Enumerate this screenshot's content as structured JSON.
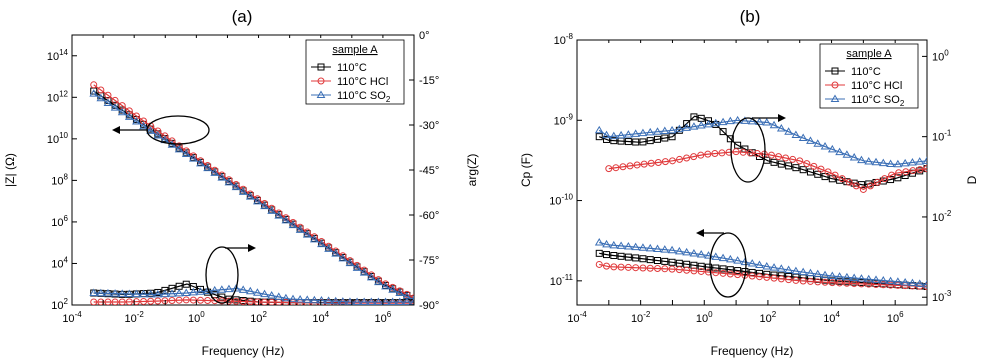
{
  "panels": [
    {
      "title": "(a)",
      "xlabel": "Frequency (Hz)",
      "ylabel_left": "|Z| (Ω)",
      "ylabel_right": "arg(Z)",
      "x_ticks": [
        "10-4",
        "10-2",
        "100",
        "102",
        "104",
        "106"
      ],
      "y_left_ticks": [
        "102",
        "104",
        "106",
        "108",
        "1010",
        "1012",
        "1014"
      ],
      "y_right_ticks": [
        "0°",
        "-15°",
        "-30°",
        "-45°",
        "-60°",
        "-75°",
        "-90°"
      ],
      "legend": {
        "title": "sample A",
        "entries": [
          {
            "label": "110°C",
            "color": "#000000",
            "marker": "square"
          },
          {
            "label": "110°C HCl",
            "color": "#e0393b",
            "marker": "circle"
          },
          {
            "label": "110°C SO",
            "sub": "2",
            "color": "#3b6fb6",
            "marker": "triangle"
          }
        ]
      }
    },
    {
      "title": "(b)",
      "xlabel": "Frequency (Hz)",
      "ylabel_left": "Cp (F)",
      "ylabel_right": "D",
      "x_ticks": [
        "10-4",
        "10-2",
        "100",
        "102",
        "104",
        "106"
      ],
      "y_left_ticks": [
        "10-11",
        "10-10",
        "10-9",
        "10-8"
      ],
      "y_right_ticks": [
        "10-3",
        "10-2",
        "10-1",
        "100"
      ],
      "legend": {
        "title": "sample A",
        "entries": [
          {
            "label": "110°C",
            "color": "#000000",
            "marker": "square"
          },
          {
            "label": "110°C HCl",
            "color": "#e0393b",
            "marker": "circle"
          },
          {
            "label": "110°C SO",
            "sub": "2",
            "color": "#3b6fb6",
            "marker": "triangle"
          }
        ]
      }
    }
  ],
  "colors": {
    "s110": "#000000",
    "hcl": "#e0393b",
    "so2": "#3b6fb6"
  },
  "chart_data": [
    {
      "type": "scatter",
      "title": "(a)",
      "xlabel": "Frequency (Hz)",
      "ylabel": "|Z| (Ω)",
      "y2label": "arg(Z)",
      "xscale": "log",
      "xlim": [
        0.0001,
        10000000
      ],
      "yscale": "log",
      "ylim": [
        100,
        1000000000000000
      ],
      "y2lim": [
        -90,
        0
      ],
      "legend_position": "top-right",
      "series": [
        {
          "name": "110°C",
          "axis": "left",
          "marker": "square",
          "x": [
            0.0005,
            0.01,
            1,
            100,
            10000,
            1000000,
            10000000
          ],
          "y": [
            2000000000000,
            100000000000,
            1000000000,
            10000000,
            100000,
            1000,
            200
          ]
        },
        {
          "name": "110°C HCl",
          "axis": "left",
          "marker": "circle",
          "x": [
            0.0005,
            0.01,
            1,
            100,
            10000,
            1000000,
            10000000
          ],
          "y": [
            4000000000000,
            150000000000,
            1200000000,
            12000000,
            120000,
            1200,
            220
          ]
        },
        {
          "name": "110°C SO2",
          "axis": "left",
          "marker": "triangle",
          "x": [
            0.0005,
            0.01,
            1,
            100,
            10000,
            1000000,
            10000000
          ],
          "y": [
            1500000000000,
            80000000000,
            900000000,
            9000000,
            90000,
            900,
            180
          ]
        },
        {
          "name": "110°C",
          "axis": "right",
          "marker": "square",
          "x": [
            0.0005,
            0.005,
            0.05,
            0.5,
            2,
            10,
            100,
            1000,
            100000,
            10000000
          ],
          "y": [
            -86,
            -86.5,
            -86,
            -83,
            -85.5,
            -88,
            -89,
            -89.2,
            -89.2,
            -89.2
          ]
        },
        {
          "name": "110°C HCl",
          "axis": "right",
          "marker": "circle",
          "x": [
            0.0005,
            0.005,
            0.05,
            0.5,
            5,
            100,
            10000,
            10000000
          ],
          "y": [
            -89,
            -89,
            -88.7,
            -88.3,
            -88.6,
            -89,
            -89.3,
            -89.4
          ]
        },
        {
          "name": "110°C SO2",
          "axis": "right",
          "marker": "triangle",
          "x": [
            0.0005,
            0.005,
            0.05,
            0.5,
            5,
            20,
            100,
            1000,
            100000,
            10000000
          ],
          "y": [
            -86,
            -86.3,
            -86.5,
            -86,
            -85,
            -84.5,
            -86,
            -88,
            -89,
            -89
          ]
        }
      ],
      "annotations": [
        {
          "text": "ellipse with arrow to left axis",
          "near": [
            3,
            10000000000
          ]
        },
        {
          "text": "ellipse with arrow to right axis",
          "near": [
            3,
            -87
          ]
        }
      ]
    },
    {
      "type": "scatter",
      "title": "(b)",
      "xlabel": "Frequency (Hz)",
      "ylabel": "Cp (F)",
      "y2label": "D",
      "xscale": "log",
      "xlim": [
        0.0001,
        10000000
      ],
      "yscale": "log",
      "ylim": [
        5e-12,
        1e-08
      ],
      "y2scale": "log",
      "y2lim": [
        0.0008,
        1.6
      ],
      "legend_position": "top-right",
      "series": [
        {
          "name": "110°C",
          "axis": "left",
          "marker": "square",
          "x": [
            0.0005,
            0.001,
            0.01,
            0.1,
            1,
            10,
            100,
            1000,
            10000,
            1000000,
            10000000
          ],
          "y": [
            2.2e-11,
            2.1e-11,
            1.9e-11,
            1.7e-11,
            1.5e-11,
            1.35e-11,
            1.2e-11,
            1.1e-11,
            1e-11,
            9e-12,
            8.5e-12
          ]
        },
        {
          "name": "110°C HCl",
          "axis": "left",
          "marker": "circle",
          "x": [
            0.0005,
            0.001,
            0.01,
            0.1,
            1,
            10,
            100,
            1000,
            10000,
            1000000,
            10000000
          ],
          "y": [
            1.6e-11,
            1.5e-11,
            1.45e-11,
            1.4e-11,
            1.3e-11,
            1.2e-11,
            1.1e-11,
            1e-11,
            9.5e-12,
            8.8e-12,
            8.5e-12
          ]
        },
        {
          "name": "110°C SO2",
          "axis": "left",
          "marker": "triangle",
          "x": [
            0.0005,
            0.001,
            0.01,
            0.1,
            1,
            10,
            100,
            1000,
            10000,
            1000000,
            10000000
          ],
          "y": [
            3e-11,
            2.8e-11,
            2.6e-11,
            2.4e-11,
            2.1e-11,
            1.8e-11,
            1.5e-11,
            1.3e-11,
            1.15e-11,
            9.8e-12,
            9e-12
          ]
        },
        {
          "name": "110°C",
          "axis": "right",
          "marker": "square",
          "x": [
            0.0005,
            0.001,
            0.01,
            0.1,
            0.5,
            2,
            10,
            100,
            1000,
            10000,
            100000,
            1000000,
            10000000
          ],
          "y": [
            0.1,
            0.09,
            0.085,
            0.1,
            0.18,
            0.15,
            0.08,
            0.05,
            0.04,
            0.03,
            0.025,
            0.03,
            0.04
          ]
        },
        {
          "name": "110°C HCl",
          "axis": "right",
          "marker": "circle",
          "x": [
            0.001,
            0.01,
            0.1,
            1,
            10,
            100,
            1000,
            10000,
            100000,
            1000000,
            10000000
          ],
          "y": [
            0.04,
            0.045,
            0.05,
            0.06,
            0.065,
            0.06,
            0.05,
            0.035,
            0.022,
            0.035,
            0.04
          ]
        },
        {
          "name": "110°C SO2",
          "axis": "right",
          "marker": "triangle",
          "x": [
            0.0005,
            0.001,
            0.01,
            0.1,
            1,
            10,
            100,
            1000,
            10000,
            100000,
            1000000,
            10000000
          ],
          "y": [
            0.12,
            0.1,
            0.11,
            0.12,
            0.14,
            0.16,
            0.15,
            0.1,
            0.07,
            0.05,
            0.045,
            0.05
          ]
        }
      ],
      "annotations": [
        {
          "text": "ellipse with arrow to right axis",
          "near": [
            30,
            0.08
          ]
        },
        {
          "text": "ellipse with arrow to left axis",
          "near": [
            30,
            1.5e-11
          ]
        }
      ]
    }
  ]
}
